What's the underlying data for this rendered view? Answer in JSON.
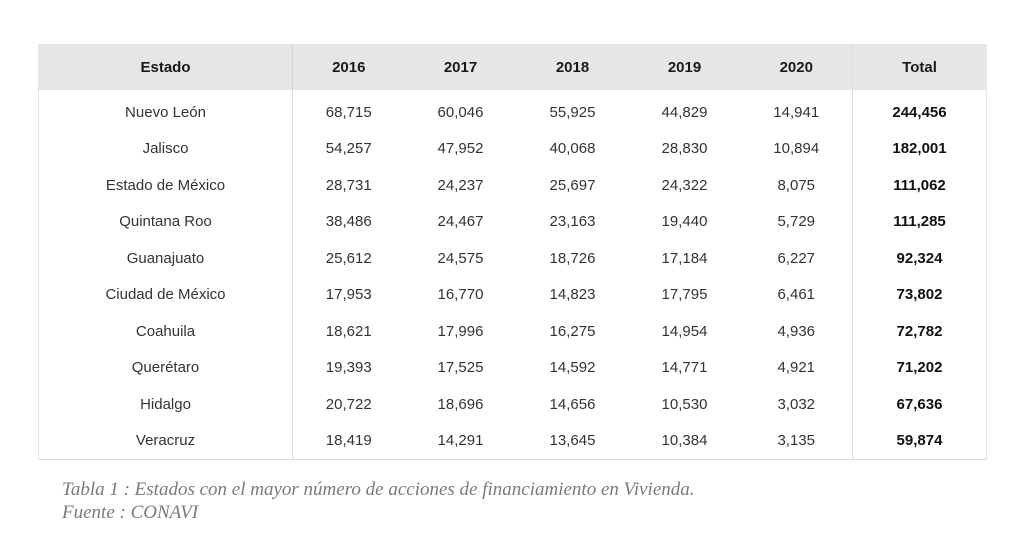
{
  "table": {
    "headers": [
      "Estado",
      "2016",
      "2017",
      "2018",
      "2019",
      "2020",
      "Total"
    ],
    "rows": [
      {
        "estado": "Nuevo León",
        "y2016": "68,715",
        "y2017": "60,046",
        "y2018": "55,925",
        "y2019": "44,829",
        "y2020": "14,941",
        "total": "244,456"
      },
      {
        "estado": "Jalisco",
        "y2016": "54,257",
        "y2017": "47,952",
        "y2018": "40,068",
        "y2019": "28,830",
        "y2020": "10,894",
        "total": "182,001"
      },
      {
        "estado": "Estado de México",
        "y2016": "28,731",
        "y2017": "24,237",
        "y2018": "25,697",
        "y2019": "24,322",
        "y2020": "8,075",
        "total": "111,062"
      },
      {
        "estado": "Quintana Roo",
        "y2016": "38,486",
        "y2017": "24,467",
        "y2018": "23,163",
        "y2019": "19,440",
        "y2020": "5,729",
        "total": "111,285"
      },
      {
        "estado": "Guanajuato",
        "y2016": "25,612",
        "y2017": "24,575",
        "y2018": "18,726",
        "y2019": "17,184",
        "y2020": "6,227",
        "total": "92,324"
      },
      {
        "estado": "Ciudad de México",
        "y2016": "17,953",
        "y2017": "16,770",
        "y2018": "14,823",
        "y2019": "17,795",
        "y2020": "6,461",
        "total": "73,802"
      },
      {
        "estado": "Coahuila",
        "y2016": "18,621",
        "y2017": "17,996",
        "y2018": "16,275",
        "y2019": "14,954",
        "y2020": "4,936",
        "total": "72,782"
      },
      {
        "estado": "Querétaro",
        "y2016": "19,393",
        "y2017": "17,525",
        "y2018": "14,592",
        "y2019": "14,771",
        "y2020": "4,921",
        "total": "71,202"
      },
      {
        "estado": "Hidalgo",
        "y2016": "20,722",
        "y2017": "18,696",
        "y2018": "14,656",
        "y2019": "10,530",
        "y2020": "3,032",
        "total": "67,636"
      },
      {
        "estado": "Veracruz",
        "y2016": "18,419",
        "y2017": "14,291",
        "y2018": "13,645",
        "y2019": "10,384",
        "y2020": "3,135",
        "total": "59,874"
      }
    ]
  },
  "caption": {
    "line1": "Tabla 1 : Estados con el mayor número de acciones  de financiamiento en Vivienda.",
    "line2": "Fuente : CONAVI"
  },
  "colors": {
    "header_bg": "#e6e6e6",
    "caption_text": "#7a7a7a"
  }
}
